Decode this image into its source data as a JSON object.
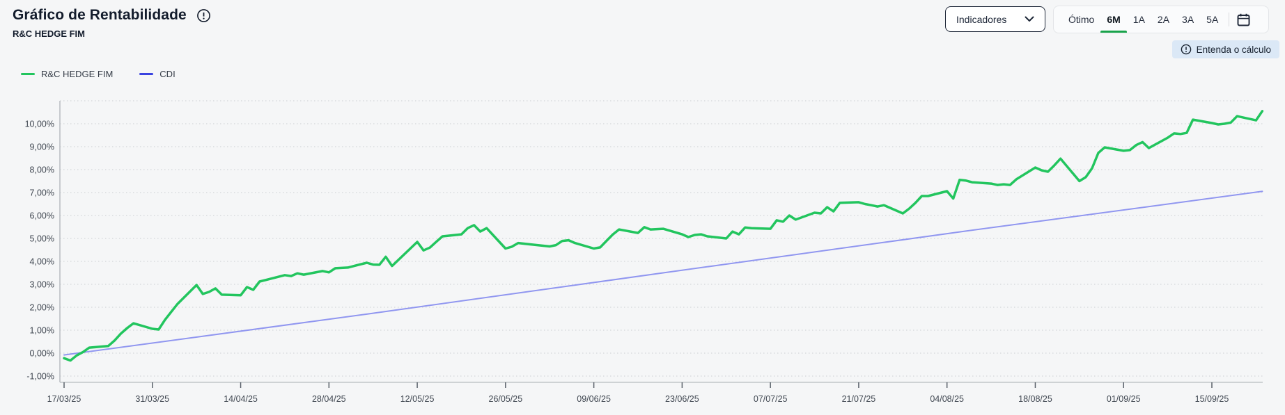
{
  "header": {
    "title": "Gráfico de Rentabilidade",
    "subtitle": "R&C HEDGE FIM",
    "indicators_button": "Indicadores",
    "periods": [
      "Ótimo",
      "6M",
      "1A",
      "2A",
      "3A",
      "5A"
    ],
    "active_period": "6M",
    "calc_chip": "Entenda o cálculo"
  },
  "legend": [
    {
      "label": "R&C HEDGE FIM",
      "color": "#22c55e"
    },
    {
      "label": "CDI",
      "color": "#3a43e0"
    }
  ],
  "colors": {
    "fund_line": "#22c55e",
    "cdi_line": "#9096f0",
    "active_underline": "#18a34a",
    "gridline": "#d3d6d9",
    "axis": "#b8bcc0",
    "tick": "#596069"
  },
  "chart_data": {
    "type": "line",
    "title": "Gráfico de Rentabilidade",
    "x_tick_labels": [
      "17/03/25",
      "31/03/25",
      "14/04/25",
      "28/04/25",
      "12/05/25",
      "26/05/25",
      "09/06/25",
      "23/06/25",
      "07/07/25",
      "21/07/25",
      "04/08/25",
      "18/08/25",
      "01/09/25",
      "15/09/25"
    ],
    "x_tick_interval_days": 14,
    "x_domain_days": [
      0,
      190
    ],
    "ylim": [
      -1.4,
      11
    ],
    "grid": "dotted-horizontal",
    "legend_position": "top-left",
    "y_gridlines": [
      {
        "value": 11,
        "label": ""
      },
      {
        "value": 10,
        "label": "10,00%"
      },
      {
        "value": 9,
        "label": "9,00%"
      },
      {
        "value": 8,
        "label": "8,00%"
      },
      {
        "value": 7,
        "label": "7,00%"
      },
      {
        "value": 6,
        "label": "6,00%"
      },
      {
        "value": 5,
        "label": "5,00%"
      },
      {
        "value": 4,
        "label": "4,00%"
      },
      {
        "value": 3,
        "label": "3,00%"
      },
      {
        "value": 2,
        "label": "2,00%"
      },
      {
        "value": 1,
        "label": "1,00%"
      },
      {
        "value": 0,
        "label": "0,00%"
      },
      {
        "value": -1,
        "label": "-1,00%"
      }
    ],
    "series": [
      {
        "id": "fund-line",
        "name": "R&C HEDGE FIM",
        "color": "#22c55e",
        "unit": "percent",
        "points": [
          [
            0,
            -0.22
          ],
          [
            1,
            -0.32
          ],
          [
            2,
            -0.1
          ],
          [
            3,
            0.05
          ],
          [
            4,
            0.24
          ],
          [
            7,
            0.31
          ],
          [
            8,
            0.55
          ],
          [
            9,
            0.85
          ],
          [
            10,
            1.09
          ],
          [
            11,
            1.3
          ],
          [
            14,
            1.06
          ],
          [
            15,
            1.03
          ],
          [
            16,
            1.45
          ],
          [
            17,
            1.8
          ],
          [
            18,
            2.15
          ],
          [
            21,
            2.97
          ],
          [
            22,
            2.58
          ],
          [
            23,
            2.67
          ],
          [
            24,
            2.82
          ],
          [
            25,
            2.55
          ],
          [
            28,
            2.52
          ],
          [
            29,
            2.88
          ],
          [
            30,
            2.76
          ],
          [
            31,
            3.12
          ],
          [
            35,
            3.4
          ],
          [
            36,
            3.36
          ],
          [
            37,
            3.48
          ],
          [
            38,
            3.42
          ],
          [
            41,
            3.58
          ],
          [
            42,
            3.52
          ],
          [
            43,
            3.7
          ],
          [
            45,
            3.73
          ],
          [
            48,
            3.94
          ],
          [
            49,
            3.86
          ],
          [
            50,
            3.85
          ],
          [
            51,
            4.2
          ],
          [
            52,
            3.8
          ],
          [
            56,
            4.85
          ],
          [
            57,
            4.48
          ],
          [
            58,
            4.6
          ],
          [
            59,
            4.85
          ],
          [
            60,
            5.09
          ],
          [
            63,
            5.18
          ],
          [
            64,
            5.45
          ],
          [
            65,
            5.58
          ],
          [
            66,
            5.3
          ],
          [
            67,
            5.45
          ],
          [
            70,
            4.56
          ],
          [
            71,
            4.64
          ],
          [
            72,
            4.8
          ],
          [
            73,
            4.77
          ],
          [
            74,
            4.74
          ],
          [
            77,
            4.65
          ],
          [
            78,
            4.71
          ],
          [
            79,
            4.89
          ],
          [
            80,
            4.92
          ],
          [
            81,
            4.8
          ],
          [
            84,
            4.56
          ],
          [
            85,
            4.61
          ],
          [
            86,
            4.89
          ],
          [
            87,
            5.17
          ],
          [
            88,
            5.39
          ],
          [
            91,
            5.24
          ],
          [
            92,
            5.49
          ],
          [
            93,
            5.39
          ],
          [
            95,
            5.42
          ],
          [
            98,
            5.18
          ],
          [
            99,
            5.06
          ],
          [
            100,
            5.15
          ],
          [
            101,
            5.18
          ],
          [
            102,
            5.09
          ],
          [
            105,
            5.0
          ],
          [
            106,
            5.3
          ],
          [
            107,
            5.18
          ],
          [
            108,
            5.48
          ],
          [
            109,
            5.45
          ],
          [
            112,
            5.42
          ],
          [
            113,
            5.79
          ],
          [
            114,
            5.73
          ],
          [
            115,
            6.0
          ],
          [
            116,
            5.82
          ],
          [
            119,
            6.12
          ],
          [
            120,
            6.09
          ],
          [
            121,
            6.36
          ],
          [
            122,
            6.18
          ],
          [
            123,
            6.55
          ],
          [
            126,
            6.58
          ],
          [
            127,
            6.5
          ],
          [
            128,
            6.45
          ],
          [
            129,
            6.39
          ],
          [
            130,
            6.45
          ],
          [
            133,
            6.09
          ],
          [
            134,
            6.3
          ],
          [
            135,
            6.55
          ],
          [
            136,
            6.85
          ],
          [
            137,
            6.85
          ],
          [
            140,
            7.06
          ],
          [
            141,
            6.74
          ],
          [
            142,
            7.55
          ],
          [
            143,
            7.52
          ],
          [
            144,
            7.45
          ],
          [
            147,
            7.39
          ],
          [
            148,
            7.33
          ],
          [
            149,
            7.36
          ],
          [
            150,
            7.33
          ],
          [
            151,
            7.58
          ],
          [
            154,
            8.09
          ],
          [
            155,
            7.97
          ],
          [
            156,
            7.91
          ],
          [
            157,
            8.18
          ],
          [
            158,
            8.48
          ],
          [
            161,
            7.5
          ],
          [
            162,
            7.67
          ],
          [
            163,
            8.06
          ],
          [
            164,
            8.73
          ],
          [
            165,
            8.97
          ],
          [
            168,
            8.82
          ],
          [
            169,
            8.85
          ],
          [
            170,
            9.07
          ],
          [
            171,
            9.2
          ],
          [
            172,
            8.94
          ],
          [
            175,
            9.39
          ],
          [
            176,
            9.58
          ],
          [
            177,
            9.55
          ],
          [
            178,
            9.6
          ],
          [
            179,
            10.18
          ],
          [
            182,
            10.03
          ],
          [
            183,
            9.97
          ],
          [
            184,
            10.0
          ],
          [
            185,
            10.05
          ],
          [
            186,
            10.33
          ],
          [
            189,
            10.15
          ],
          [
            190,
            10.55
          ]
        ]
      },
      {
        "id": "cdi-line",
        "name": "CDI",
        "color": "#9096f0",
        "unit": "percent",
        "points": [
          [
            0,
            -0.08
          ],
          [
            48,
            1.7
          ],
          [
            95,
            3.5
          ],
          [
            143,
            5.32
          ],
          [
            190,
            7.05
          ]
        ]
      }
    ]
  }
}
